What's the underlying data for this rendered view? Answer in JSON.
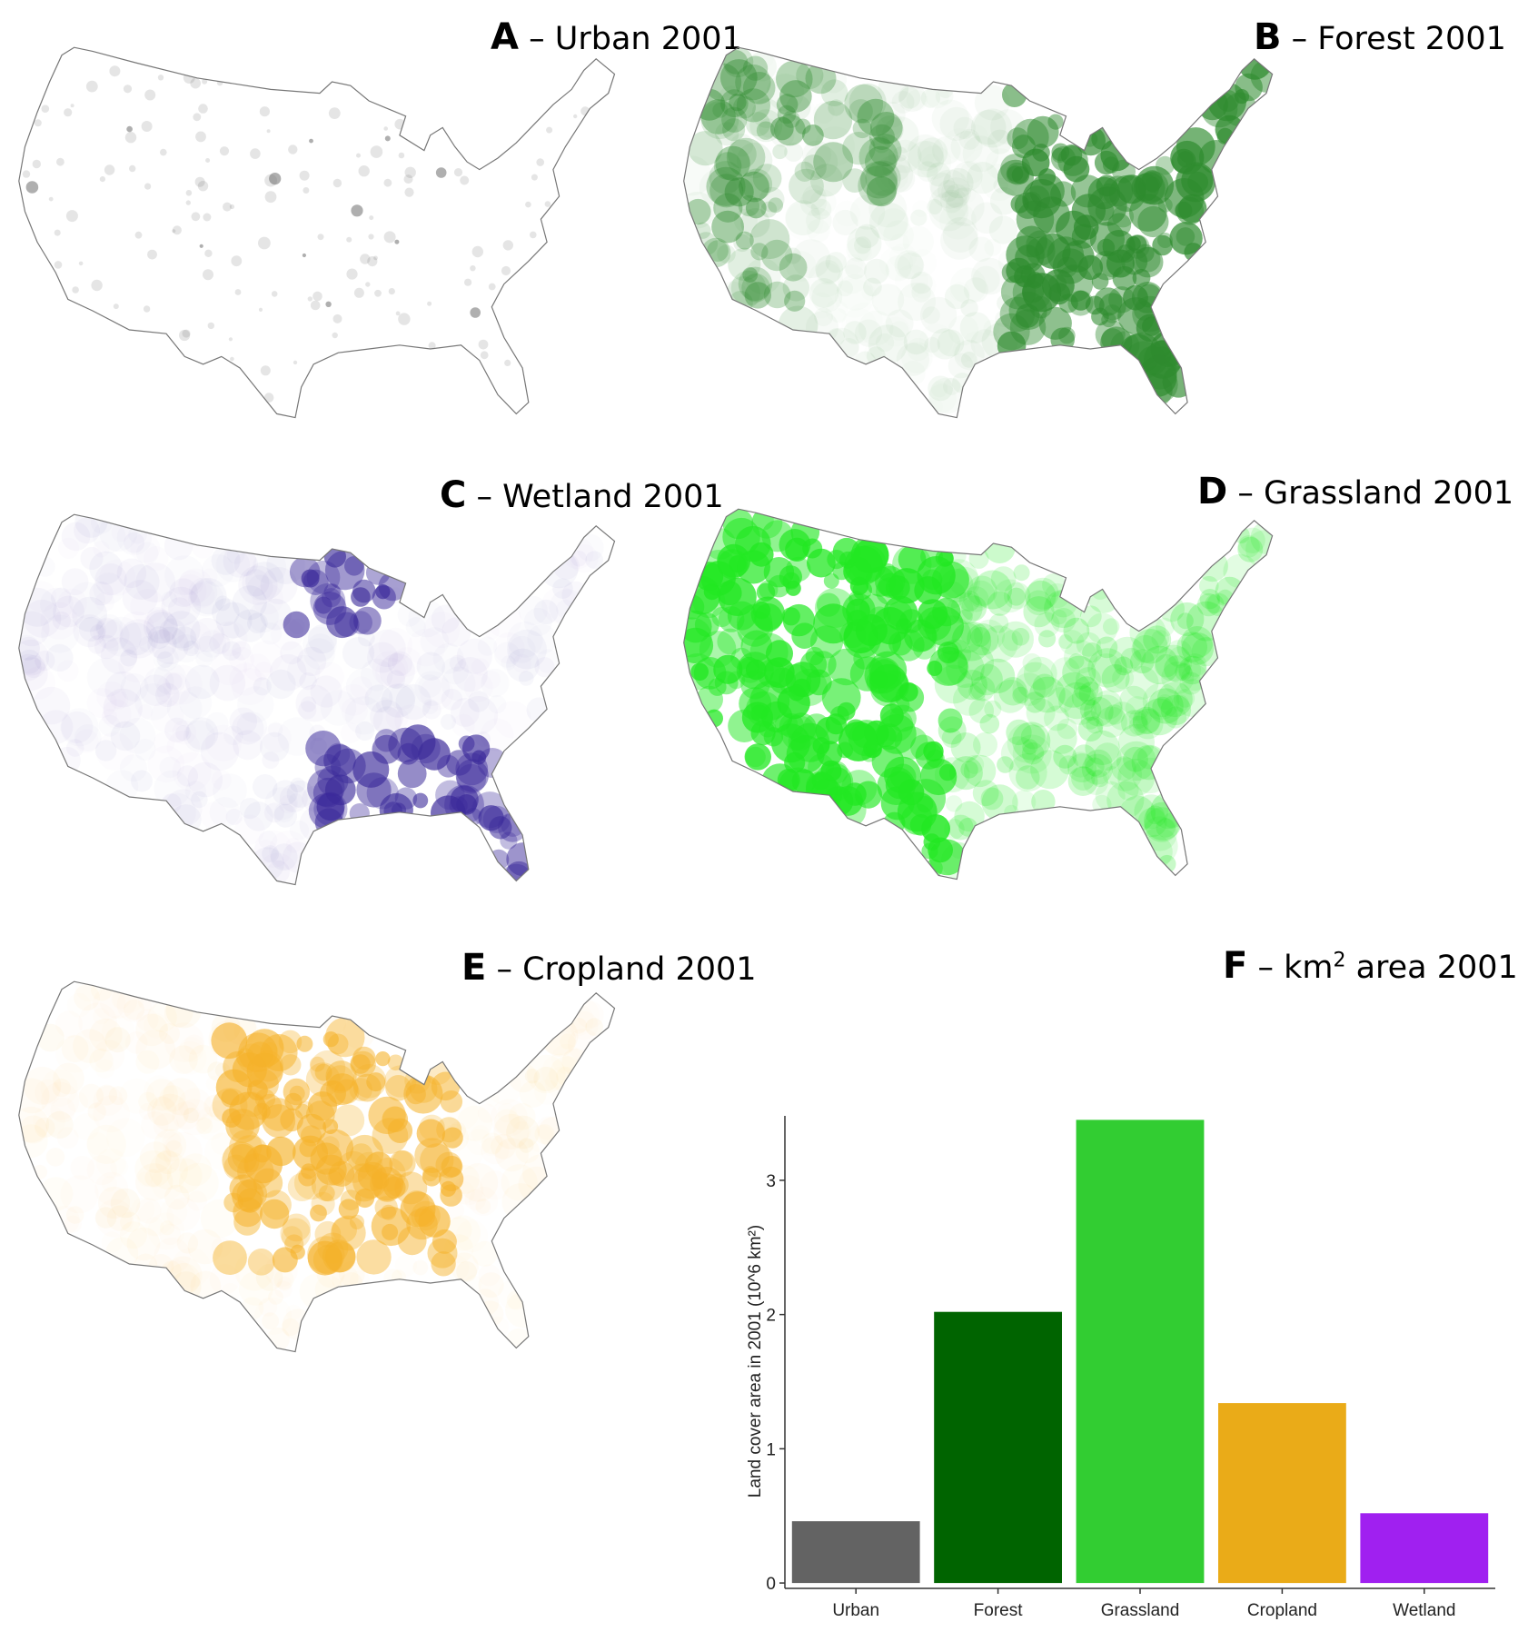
{
  "panels": [
    {
      "id": "A",
      "letter": "A",
      "title": " – Urban 2001",
      "color": "#6e6e6e"
    },
    {
      "id": "B",
      "letter": "B",
      "title": " – Forest 2001",
      "color": "#2e8b2e"
    },
    {
      "id": "C",
      "letter": "C",
      "title": " – Wetland 2001",
      "color": "#3b2a9a"
    },
    {
      "id": "D",
      "letter": "D",
      "title": " – Grassland 2001",
      "color": "#22e822"
    },
    {
      "id": "E",
      "letter": "E",
      "title": " – Cropland 2001",
      "color": "#f5b22a"
    }
  ],
  "panel_f": {
    "letter": "F",
    "title_pre": " – km",
    "title_sup": "2",
    "title_post": " area 2001"
  },
  "chart_data": {
    "type": "bar",
    "categories": [
      "Urban",
      "Forest",
      "Grassland",
      "Cropland",
      "Wetland"
    ],
    "values": [
      0.46,
      2.02,
      3.45,
      1.34,
      0.52
    ],
    "colors": [
      "#636363",
      "#006400",
      "#32cd32",
      "#eaab18",
      "#a020f0"
    ],
    "ylabel": "Land cover area in 2001 (10^6 km²)",
    "yticks": [
      0,
      1,
      2,
      3
    ],
    "ylim": [
      -0.04,
      3.48
    ],
    "grid": false
  }
}
